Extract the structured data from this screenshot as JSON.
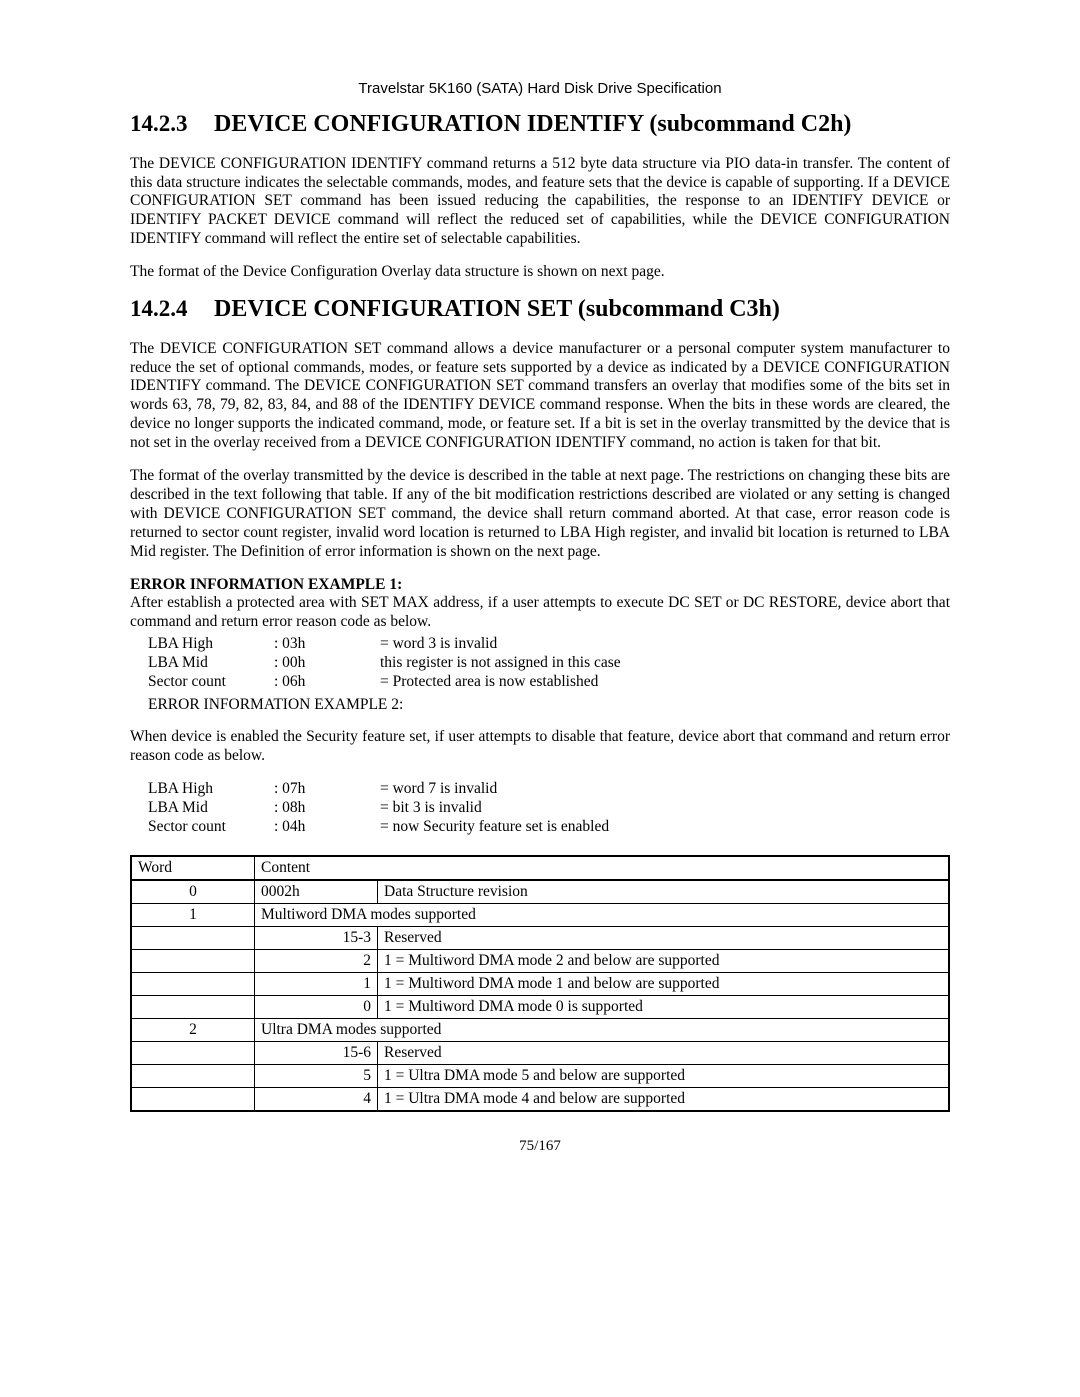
{
  "header": "Travelstar 5K160 (SATA) Hard Disk Drive Specification",
  "s1": {
    "num": "14.2.3",
    "title": "DEVICE CONFIGURATION IDENTIFY (subcommand C2h)",
    "p1": "The DEVICE CONFIGURATION IDENTIFY command returns a 512 byte data structure via PIO data-in transfer. The content of this data structure indicates the selectable commands, modes, and feature sets that the device is capable of supporting. If a DEVICE CONFIGURATION SET command has been issued reducing the capabilities, the response to an IDENTIFY DEVICE or IDENTIFY PACKET DEVICE command will reflect the reduced set of capabilities, while the DEVICE CONFIGURATION IDENTIFY command will reflect the entire set of selectable capabilities.",
    "p2": "The format of the Device Configuration Overlay data structure is shown on next page."
  },
  "s2": {
    "num": "14.2.4",
    "title": "DEVICE CONFIGURATION SET (subcommand C3h)",
    "p1": "The DEVICE CONFIGURATION SET command allows a device manufacturer or a personal computer system manufacturer to reduce the set of optional commands, modes, or feature sets supported by a device as indicated by a DEVICE CONFIGURATION IDENTIFY command. The DEVICE CONFIGURATION SET command transfers an overlay that modifies some of the bits set in words 63, 78, 79, 82, 83, 84, and 88 of the IDENTIFY DEVICE command response. When the bits in these words are cleared, the device no longer supports the indicated command, mode, or feature set. If a bit is set in the overlay transmitted by the device that is not set in the overlay received from a DEVICE CONFIGURATION IDENTIFY command, no action is taken for that bit.",
    "p2": "The format of the overlay transmitted by the device is described in the table at next page. The restrictions on changing these bits are described in the text following that table. If any of the bit modification restrictions described are violated or any setting is changed with DEVICE CONFIGURATION SET command, the device shall return command aborted. At that case, error reason code is returned to sector count register, invalid word location is returned to LBA High register, and invalid bit location is returned to LBA Mid register. The Definition of error information is shown on the next page."
  },
  "ex1": {
    "title": "ERROR INFORMATION EXAMPLE 1:",
    "desc": "After establish a protected area with SET MAX address, if a user attempts to execute DC SET or DC RESTORE, device abort that command and return error reason code as below.",
    "rows": [
      {
        "reg": "LBA High",
        "val": ": 03h",
        "meaning": "= word 3 is invalid"
      },
      {
        "reg": "LBA Mid",
        "val": ": 00h",
        "meaning": "this register is not assigned in this case"
      },
      {
        "reg": "Sector count",
        "val": ": 06h",
        "meaning": "= Protected area is now established"
      }
    ]
  },
  "ex2label": "ERROR INFORMATION EXAMPLE 2:",
  "ex2": {
    "desc": "When device is enabled the Security feature set, if user attempts to disable that feature, device abort that command and return error reason code as below.",
    "rows": [
      {
        "reg": "LBA High",
        "val": ": 07h",
        "meaning": "= word 7 is invalid"
      },
      {
        "reg": "LBA Mid",
        "val": ": 08h",
        "meaning": "= bit 3 is invalid"
      },
      {
        "reg": "Sector count",
        "val": ": 04h",
        "meaning": "= now Security feature set is enabled"
      }
    ]
  },
  "table": {
    "h1": "Word",
    "h2": "Content",
    "rows": [
      {
        "word": "0",
        "bit": "0002h",
        "desc": "Data Structure revision",
        "bitAlign": "left"
      },
      {
        "word": "1",
        "span": "Multiword DMA modes supported"
      },
      {
        "word": "",
        "bit": "15-3",
        "desc": "Reserved"
      },
      {
        "word": "",
        "bit": "2",
        "desc": "1 = Multiword DMA mode 2 and below are supported"
      },
      {
        "word": "",
        "bit": "1",
        "desc": "1 = Multiword DMA mode 1 and below are supported"
      },
      {
        "word": "",
        "bit": "0",
        "desc": "1 = Multiword DMA mode 0 is supported"
      },
      {
        "word": "2",
        "span": "Ultra DMA modes supported"
      },
      {
        "word": "",
        "bit": "15-6",
        "desc": "Reserved"
      },
      {
        "word": "",
        "bit": "5",
        "desc": "1 = Ultra DMA mode 5 and below are supported"
      },
      {
        "word": "",
        "bit": "4",
        "desc": "1 = Ultra DMA mode 4 and below are supported"
      }
    ]
  },
  "footer": "75/167"
}
